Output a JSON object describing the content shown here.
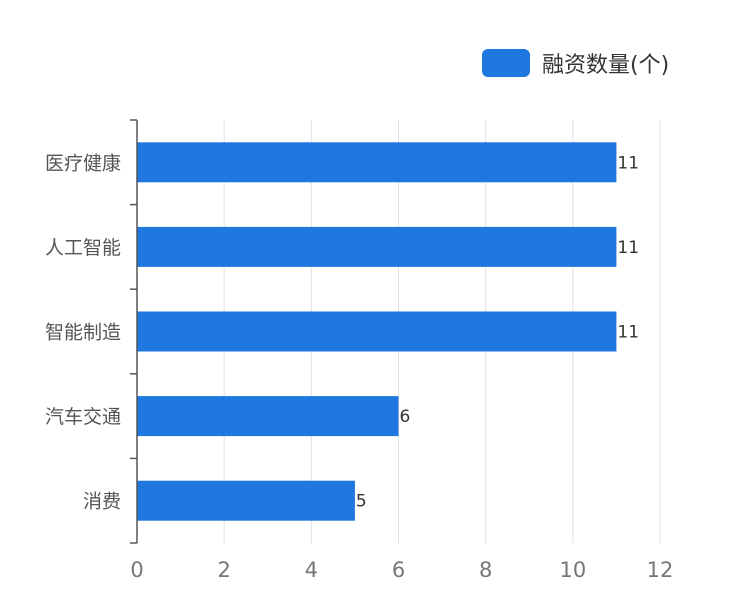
{
  "chart_data": {
    "type": "bar",
    "orientation": "horizontal",
    "categories": [
      "医疗健康",
      "人工智能",
      "智能制造",
      "汽车交通",
      "消费"
    ],
    "series": [
      {
        "name": "融资数量(个)",
        "values": [
          11,
          11,
          11,
          6,
          5
        ]
      }
    ],
    "xlim": [
      0,
      12
    ],
    "x_ticks": [
      "0",
      "2",
      "4",
      "6",
      "8",
      "10",
      "12"
    ],
    "data_labels": [
      "11",
      "11",
      "11",
      "6",
      "5"
    ],
    "grid": "vertical",
    "legend_position": "top-right"
  },
  "colors": {
    "bar": "#1f77e0",
    "grid": "#dde1ea",
    "axis": "#555555",
    "category_text": "#555555",
    "tick_text": "#777777",
    "label_text": "#333333"
  }
}
